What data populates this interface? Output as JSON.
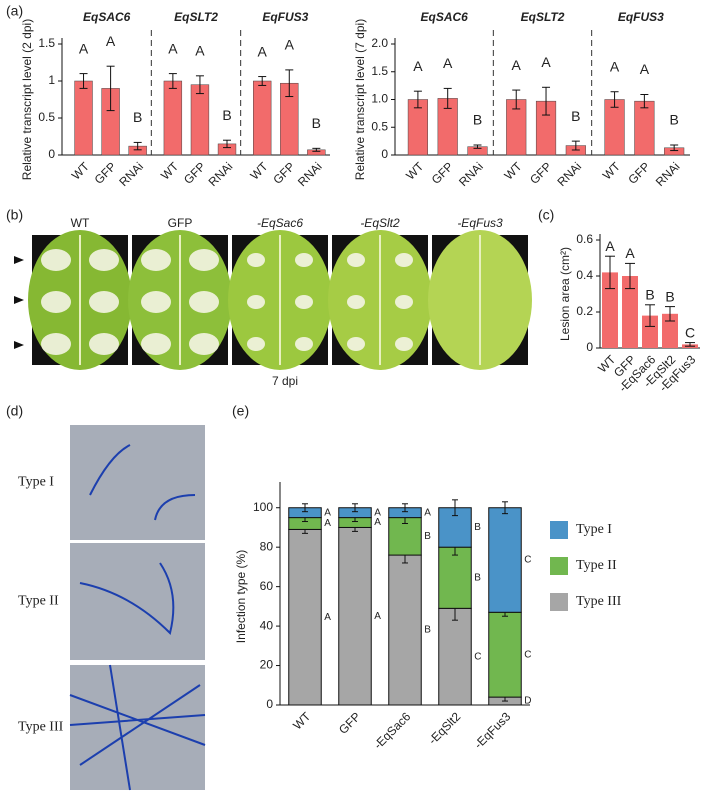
{
  "panel_labels": [
    "(a)",
    "(b)",
    "(c)",
    "(d)",
    "(e)"
  ],
  "photos_b": {
    "labels": [
      "WT",
      "GFP",
      "-EqSac6",
      "-EqSlt2",
      "-EqFus3"
    ],
    "caption": "7 dpi"
  },
  "photos_d": {
    "labels": [
      "Type I",
      "Type II",
      "Type III"
    ]
  },
  "chart_data": [
    {
      "type": "grouped_bar",
      "y_label": "Relative transcript level (2 dpi)",
      "color": "#f26b6b",
      "ylim": [
        0,
        1.5
      ],
      "yticks": [
        0,
        0.5,
        1,
        1.5
      ],
      "groups": [
        {
          "name": "EqSAC6",
          "categories": [
            "WT",
            "GFP",
            "RNAi"
          ],
          "values": [
            1.0,
            0.9,
            0.12
          ],
          "errors": [
            0.1,
            0.3,
            0.05
          ],
          "letters": [
            "A",
            "A",
            "B"
          ]
        },
        {
          "name": "EqSLT2",
          "categories": [
            "WT",
            "GFP",
            "RNAi"
          ],
          "values": [
            1.0,
            0.95,
            0.15
          ],
          "errors": [
            0.1,
            0.12,
            0.05
          ],
          "letters": [
            "A",
            "A",
            "B"
          ]
        },
        {
          "name": "EqFUS3",
          "categories": [
            "WT",
            "GFP",
            "RNAi"
          ],
          "values": [
            1.0,
            0.97,
            0.07
          ],
          "errors": [
            0.06,
            0.18,
            0.02
          ],
          "letters": [
            "A",
            "A",
            "B"
          ]
        }
      ]
    },
    {
      "type": "grouped_bar",
      "y_label": "Relative transcript level (7 dpi)",
      "color": "#f26b6b",
      "ylim": [
        0,
        2.0
      ],
      "yticks": [
        0,
        {
          "value": 0.5,
          "label": "0.5"
        },
        {
          "value": 1,
          "label": "1.0"
        },
        {
          "value": 1.5,
          "label": "1.5"
        },
        {
          "value": 2,
          "label": "2.0"
        }
      ],
      "groups": [
        {
          "name": "EqSAC6",
          "categories": [
            "WT",
            "GFP",
            "RNAi"
          ],
          "values": [
            1.0,
            1.02,
            0.15
          ],
          "errors": [
            0.15,
            0.18,
            0.03
          ],
          "letters": [
            "A",
            "A",
            "B"
          ]
        },
        {
          "name": "EqSLT2",
          "categories": [
            "WT",
            "GFP",
            "RNAi"
          ],
          "values": [
            1.0,
            0.97,
            0.17
          ],
          "errors": [
            0.17,
            0.25,
            0.08
          ],
          "letters": [
            "A",
            "A",
            "B"
          ]
        },
        {
          "name": "EqFUS3",
          "categories": [
            "WT",
            "GFP",
            "RNAi"
          ],
          "values": [
            1.0,
            0.97,
            0.13
          ],
          "errors": [
            0.14,
            0.12,
            0.05
          ],
          "letters": [
            "A",
            "A",
            "B"
          ]
        }
      ]
    },
    {
      "type": "bar",
      "y_label": "Lesion area (cm²)",
      "color": "#f26b6b",
      "ylim": [
        0,
        0.6
      ],
      "yticks": [
        0,
        0.2,
        0.4,
        0.6
      ],
      "categories": [
        "WT",
        "GFP",
        "-EqSac6",
        "-EqSlt2",
        "-EqFus3"
      ],
      "values": [
        0.42,
        0.4,
        0.18,
        0.19,
        0.02
      ],
      "errors": [
        0.09,
        0.07,
        0.06,
        0.04,
        0.01
      ],
      "letters": [
        "A",
        "A",
        "B",
        "B",
        "C"
      ]
    },
    {
      "type": "stacked_bar",
      "y_label": "Infection type (%)",
      "ylim": [
        0,
        110
      ],
      "yticks": [
        0,
        20,
        40,
        60,
        80,
        100
      ],
      "categories": [
        "WT",
        "GFP",
        "-EqSac6",
        "-EqSlt2",
        "-EqFus3"
      ],
      "series": [
        {
          "name": "Type I",
          "color": "#4a93c8",
          "values": [
            5,
            5,
            5,
            20,
            53
          ],
          "errors": [
            2,
            2,
            2,
            4,
            3
          ],
          "letters": [
            "A",
            "A",
            "A",
            "B",
            "C"
          ]
        },
        {
          "name": "Type II",
          "color": "#71b74f",
          "values": [
            6,
            5,
            19,
            31,
            43
          ],
          "errors": [
            2,
            2,
            3,
            4,
            2
          ],
          "letters": [
            "A",
            "A",
            "B",
            "B",
            "C"
          ]
        },
        {
          "name": "Type III",
          "color": "#a6a6a6",
          "values": [
            89,
            90,
            76,
            49,
            4
          ],
          "errors": [
            2,
            2,
            4,
            6,
            2
          ],
          "letters": [
            "A",
            "A",
            "B",
            "C",
            "D"
          ]
        }
      ]
    }
  ]
}
